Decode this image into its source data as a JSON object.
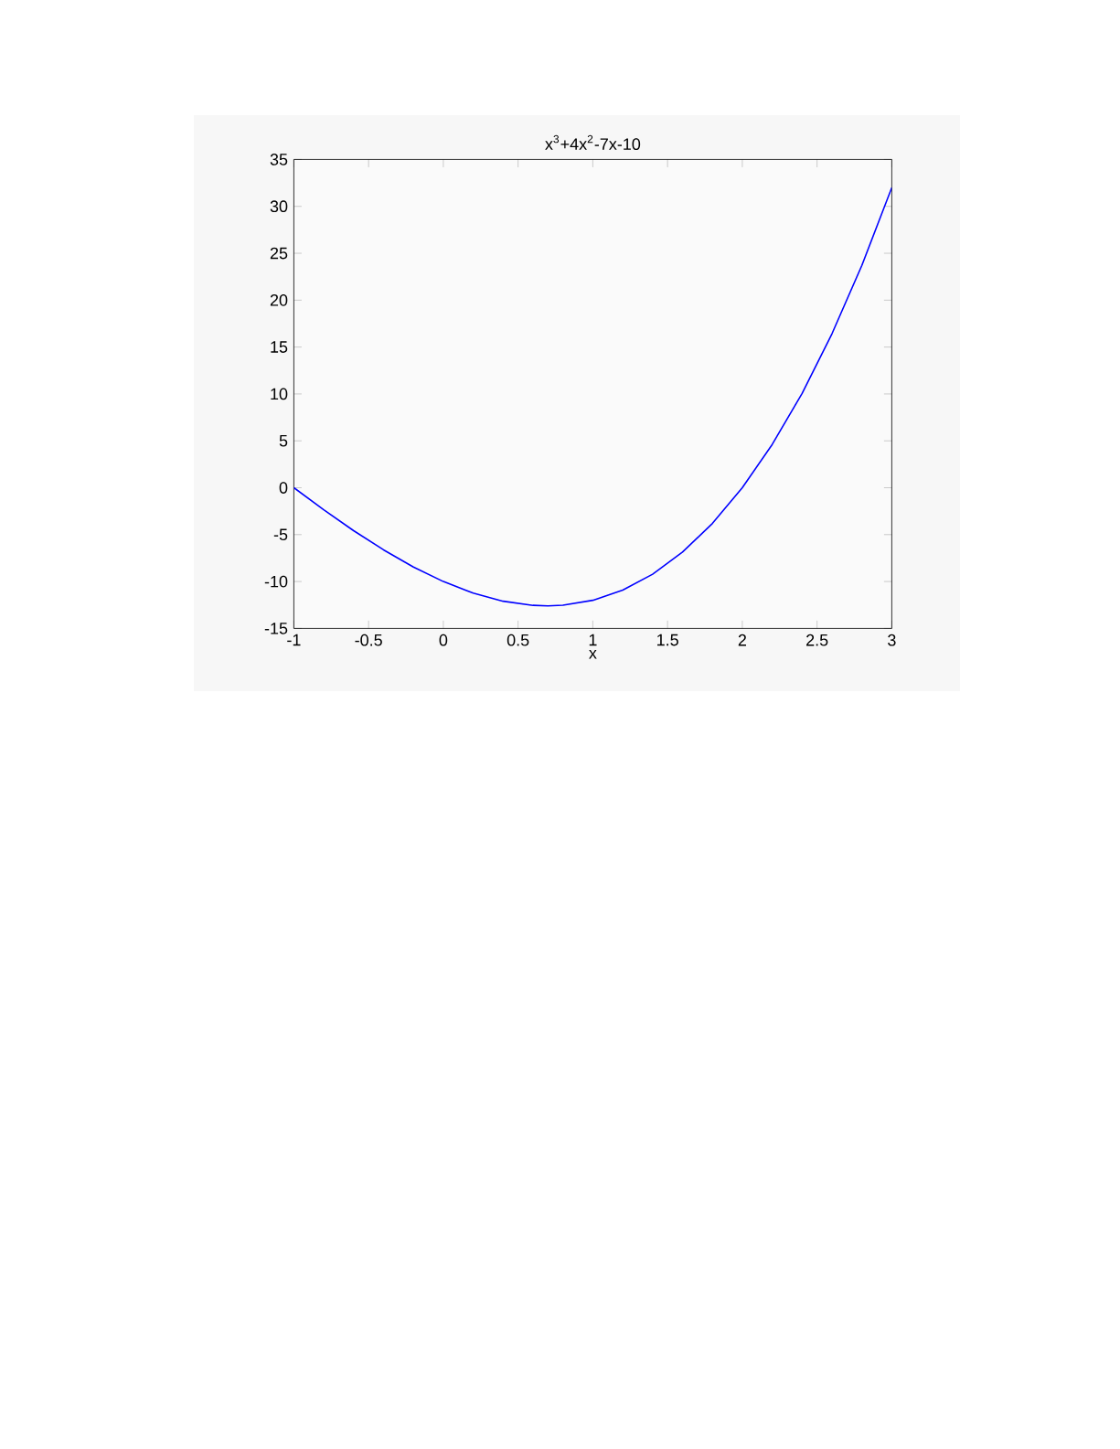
{
  "chart_data": {
    "type": "line",
    "title": "x$^{3}$+4x$^{2}$-7x-10",
    "xlabel": "x",
    "x": [
      -1,
      -0.8,
      -0.6,
      -0.4,
      -0.2,
      0,
      0.2,
      0.4,
      0.6,
      0.7,
      0.8,
      1.0,
      1.2,
      1.4,
      1.6,
      1.8,
      2.0,
      2.2,
      2.4,
      2.6,
      2.8,
      3.0
    ],
    "series": [
      {
        "color": "#0000ff",
        "values": [
          0,
          -2.35,
          -4.58,
          -6.62,
          -8.45,
          -10,
          -11.23,
          -12.1,
          -12.54,
          -12.6,
          -12.53,
          -12,
          -10.91,
          -9.22,
          -6.86,
          -3.81,
          0,
          4.61,
          10.06,
          16.42,
          23.71,
          32
        ]
      }
    ],
    "xlim": [
      -1,
      3
    ],
    "ylim": [
      -15,
      35
    ],
    "xticks": [
      -1,
      -0.5,
      0,
      0.5,
      1,
      1.5,
      2,
      2.5,
      3
    ],
    "yticks": [
      -15,
      -10,
      -5,
      0,
      5,
      10,
      15,
      20,
      25,
      30,
      35
    ],
    "grid": false,
    "marker": "none",
    "line_style": "solid"
  }
}
